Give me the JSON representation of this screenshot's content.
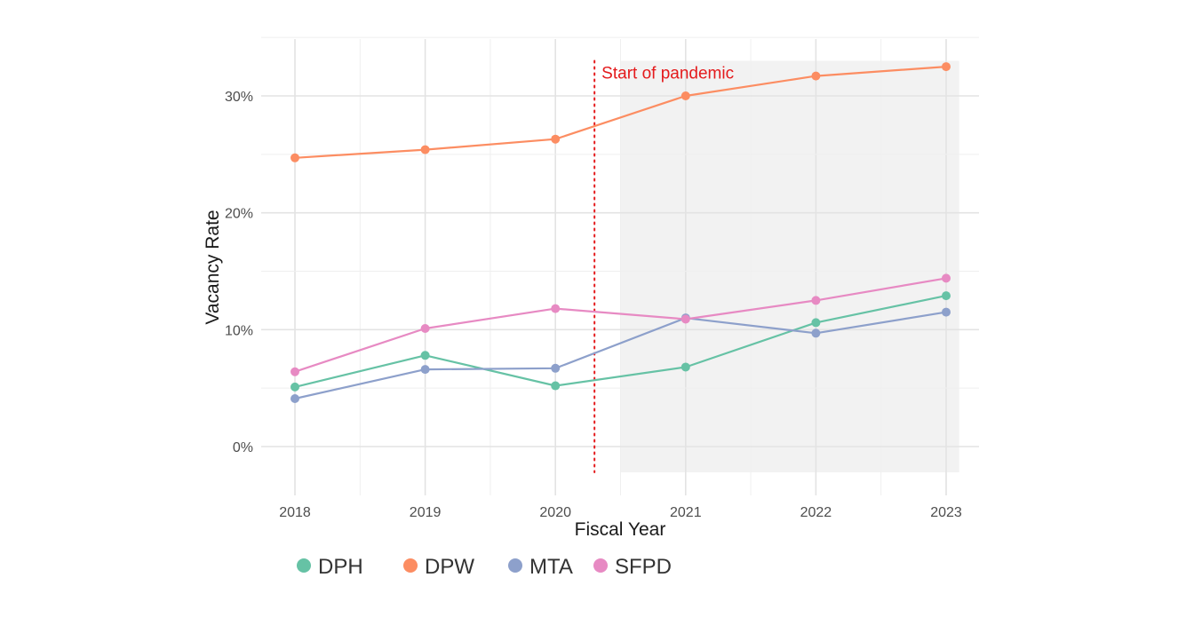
{
  "chart_data": {
    "type": "line",
    "title": "",
    "xlabel": "Fiscal Year",
    "ylabel": "Vacancy Rate",
    "x": [
      2018,
      2019,
      2020,
      2021,
      2022,
      2023
    ],
    "x_tick_labels": [
      "2018",
      "2019",
      "2020",
      "2021",
      "2022",
      "2023"
    ],
    "y_ticks": [
      0,
      10,
      20,
      30
    ],
    "y_tick_labels": [
      "0%",
      "10%",
      "20%",
      "30%"
    ],
    "xlim": [
      2017.8,
      2023.25
    ],
    "ylim": [
      -4,
      35
    ],
    "grid": true,
    "legend_position": "bottom-left",
    "series": [
      {
        "name": "DPH",
        "color": "#66c2a5",
        "values": [
          5.1,
          7.8,
          5.2,
          6.8,
          10.6,
          12.9
        ]
      },
      {
        "name": "DPW",
        "color": "#fc8d62",
        "values": [
          24.7,
          25.4,
          26.3,
          30.0,
          31.7,
          32.5
        ]
      },
      {
        "name": "MTA",
        "color": "#8da0cb",
        "values": [
          4.1,
          6.6,
          6.7,
          11.0,
          9.7,
          11.5
        ]
      },
      {
        "name": "SFPD",
        "color": "#e78ac3",
        "values": [
          6.4,
          10.1,
          11.8,
          10.9,
          12.5,
          14.4
        ]
      }
    ],
    "annotations": [
      {
        "type": "vline",
        "x": 2020.3,
        "y_from": -2.2,
        "y_to": 33,
        "color": "#e41a1c",
        "style": "dotted",
        "label": "Start of pandemic"
      },
      {
        "type": "shaded_region",
        "x_from": 2020.5,
        "x_to": 2023.1,
        "y_from": -2.2,
        "y_to": 33,
        "color": "#f2f2f2"
      }
    ]
  }
}
